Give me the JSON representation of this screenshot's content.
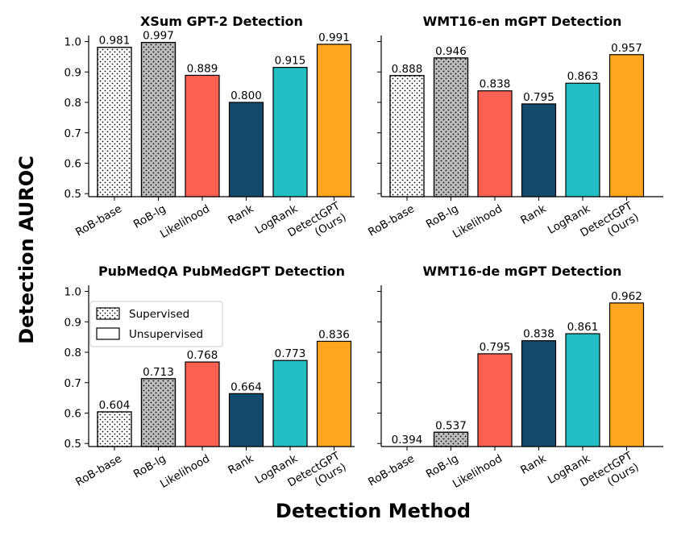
{
  "figure": {
    "xlabel": "Detection Method",
    "ylabel": "Detection AUROC"
  },
  "legend": {
    "placement": "upper-left of bottom-left panel",
    "entries": [
      {
        "label": "Supervised",
        "pattern": "dots"
      },
      {
        "label": "Unsupervised",
        "pattern": "none"
      }
    ]
  },
  "colors": {
    "RoB-base": "#ffffff",
    "RoB-lg": "#bdbdbd",
    "Likelihood": "#fb6050",
    "Rank": "#144a6c",
    "LogRank": "#22bec3",
    "DetectGPT": "#fea61d"
  },
  "chart_data": [
    {
      "type": "bar",
      "title": "XSum GPT-2 Detection",
      "categories": [
        "RoB-base",
        "RoB-lg",
        "Likelihood",
        "Rank",
        "LogRank",
        "DetectGPT (Ours)"
      ],
      "values": [
        0.981,
        0.997,
        0.889,
        0.8,
        0.915,
        0.991
      ],
      "value_labels": [
        "0.981",
        "0.997",
        "0.889",
        "0.800",
        "0.915",
        "0.991"
      ],
      "ylim": [
        0.49,
        1.02
      ],
      "yticks": [
        "0.5",
        "0.6",
        "0.7",
        "0.8",
        "0.9",
        "1.0"
      ],
      "grid": false
    },
    {
      "type": "bar",
      "title": "WMT16-en mGPT Detection",
      "categories": [
        "RoB-base",
        "RoB-lg",
        "Likelihood",
        "Rank",
        "LogRank",
        "DetectGPT (Ours)"
      ],
      "values": [
        0.888,
        0.946,
        0.838,
        0.795,
        0.863,
        0.957
      ],
      "value_labels": [
        "0.888",
        "0.946",
        "0.838",
        "0.795",
        "0.863",
        "0.957"
      ],
      "ylim": [
        0.49,
        1.02
      ],
      "grid": false
    },
    {
      "type": "bar",
      "title": "PubMedQA PubMedGPT Detection",
      "categories": [
        "RoB-base",
        "RoB-lg",
        "Likelihood",
        "Rank",
        "LogRank",
        "DetectGPT (Ours)"
      ],
      "values": [
        0.604,
        0.713,
        0.768,
        0.664,
        0.773,
        0.836
      ],
      "value_labels": [
        "0.604",
        "0.713",
        "0.768",
        "0.664",
        "0.773",
        "0.836"
      ],
      "ylim": [
        0.49,
        1.02
      ],
      "yticks": [
        "0.5",
        "0.6",
        "0.7",
        "0.8",
        "0.9",
        "1.0"
      ],
      "grid": false
    },
    {
      "type": "bar",
      "title": "WMT16-de mGPT Detection",
      "categories": [
        "RoB-base",
        "RoB-lg",
        "Likelihood",
        "Rank",
        "LogRank",
        "DetectGPT (Ours)"
      ],
      "values": [
        0.394,
        0.537,
        0.795,
        0.838,
        0.861,
        0.962
      ],
      "value_labels": [
        "0.394",
        "0.537",
        "0.795",
        "0.838",
        "0.861",
        "0.962"
      ],
      "ylim": [
        0.49,
        1.02
      ],
      "grid": false
    }
  ]
}
